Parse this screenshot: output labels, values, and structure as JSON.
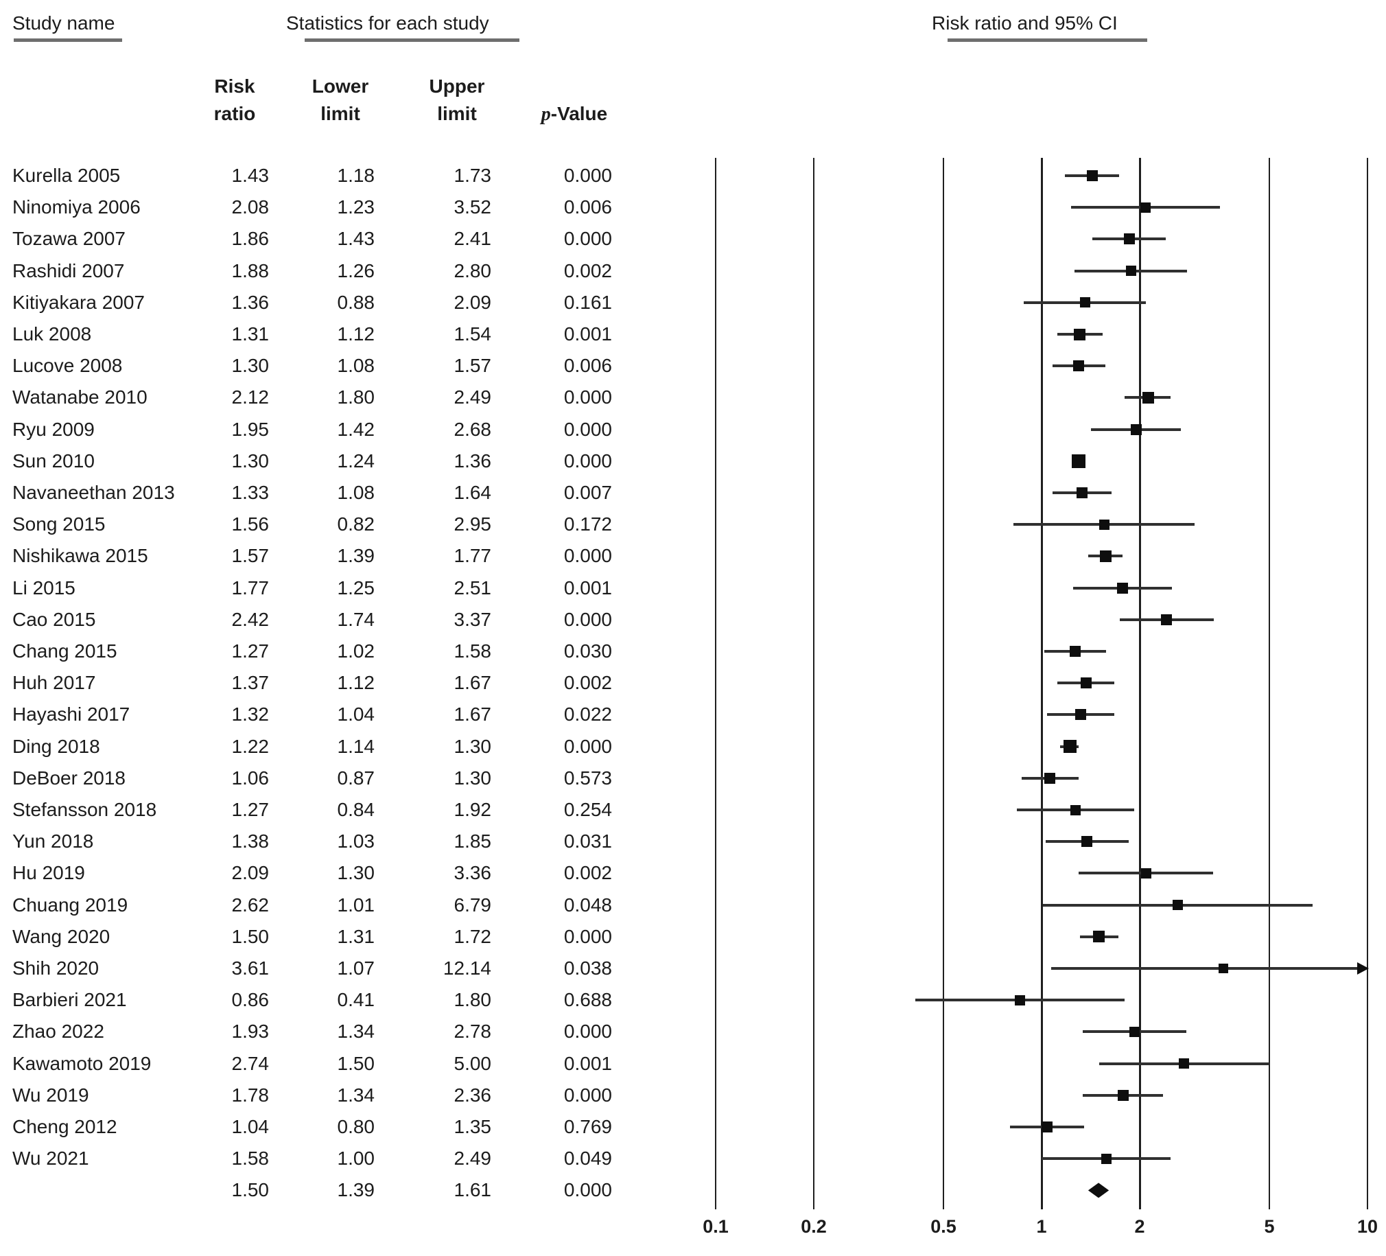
{
  "header": {
    "study_name": "Study name",
    "statistics": "Statistics for each study",
    "plot_title": "Risk ratio and 95% CI"
  },
  "columns": {
    "risk": [
      "Risk",
      "ratio"
    ],
    "lower": [
      "Lower",
      "limit"
    ],
    "upper": [
      "Upper",
      "limit"
    ],
    "p_italic": "p",
    "p_rest": "-Value"
  },
  "colors": {
    "text": "#1c1c1c",
    "underline": "#6e6e6e",
    "gridline": "#1f1f1f",
    "ci_line": "#303030",
    "marker": "#0e0e0e"
  },
  "chart_data": {
    "type": "forest",
    "x_scale": "log10",
    "xlim": [
      0.1,
      10
    ],
    "axis_ticks": [
      "0.1",
      "0.2",
      "0.5",
      "1",
      "2",
      "5",
      "10"
    ],
    "grid": "vertical-lines-at-ticks",
    "plot_title": "Risk ratio and 95% CI",
    "studies": [
      {
        "name": "Kurella 2005",
        "rr": "1.43",
        "lower": "1.18",
        "upper": "1.73",
        "p": "0.000"
      },
      {
        "name": "Ninomiya 2006",
        "rr": "2.08",
        "lower": "1.23",
        "upper": "3.52",
        "p": "0.006"
      },
      {
        "name": "Tozawa 2007",
        "rr": "1.86",
        "lower": "1.43",
        "upper": "2.41",
        "p": "0.000"
      },
      {
        "name": "Rashidi 2007",
        "rr": "1.88",
        "lower": "1.26",
        "upper": "2.80",
        "p": "0.002"
      },
      {
        "name": "Kitiyakara 2007",
        "rr": "1.36",
        "lower": "0.88",
        "upper": "2.09",
        "p": "0.161"
      },
      {
        "name": "Luk 2008",
        "rr": "1.31",
        "lower": "1.12",
        "upper": "1.54",
        "p": "0.001"
      },
      {
        "name": "Lucove 2008",
        "rr": "1.30",
        "lower": "1.08",
        "upper": "1.57",
        "p": "0.006"
      },
      {
        "name": "Watanabe 2010",
        "rr": "2.12",
        "lower": "1.80",
        "upper": "2.49",
        "p": "0.000"
      },
      {
        "name": "Ryu 2009",
        "rr": "1.95",
        "lower": "1.42",
        "upper": "2.68",
        "p": "0.000"
      },
      {
        "name": "Sun 2010",
        "rr": "1.30",
        "lower": "1.24",
        "upper": "1.36",
        "p": "0.000"
      },
      {
        "name": "Navaneethan 2013",
        "rr": "1.33",
        "lower": "1.08",
        "upper": "1.64",
        "p": "0.007"
      },
      {
        "name": "Song 2015",
        "rr": "1.56",
        "lower": "0.82",
        "upper": "2.95",
        "p": "0.172"
      },
      {
        "name": "Nishikawa 2015",
        "rr": "1.57",
        "lower": "1.39",
        "upper": "1.77",
        "p": "0.000"
      },
      {
        "name": "Li 2015",
        "rr": "1.77",
        "lower": "1.25",
        "upper": "2.51",
        "p": "0.001"
      },
      {
        "name": "Cao 2015",
        "rr": "2.42",
        "lower": "1.74",
        "upper": "3.37",
        "p": "0.000"
      },
      {
        "name": "Chang 2015",
        "rr": "1.27",
        "lower": "1.02",
        "upper": "1.58",
        "p": "0.030"
      },
      {
        "name": "Huh 2017",
        "rr": "1.37",
        "lower": "1.12",
        "upper": "1.67",
        "p": "0.002"
      },
      {
        "name": "Hayashi 2017",
        "rr": "1.32",
        "lower": "1.04",
        "upper": "1.67",
        "p": "0.022"
      },
      {
        "name": "Ding 2018",
        "rr": "1.22",
        "lower": "1.14",
        "upper": "1.30",
        "p": "0.000"
      },
      {
        "name": "DeBoer 2018",
        "rr": "1.06",
        "lower": "0.87",
        "upper": "1.30",
        "p": "0.573"
      },
      {
        "name": "Stefansson 2018",
        "rr": "1.27",
        "lower": "0.84",
        "upper": "1.92",
        "p": "0.254"
      },
      {
        "name": "Yun 2018",
        "rr": "1.38",
        "lower": "1.03",
        "upper": "1.85",
        "p": "0.031"
      },
      {
        "name": "Hu 2019",
        "rr": "2.09",
        "lower": "1.30",
        "upper": "3.36",
        "p": "0.002"
      },
      {
        "name": "Chuang 2019",
        "rr": "2.62",
        "lower": "1.01",
        "upper": "6.79",
        "p": "0.048"
      },
      {
        "name": "Wang 2020",
        "rr": "1.50",
        "lower": "1.31",
        "upper": "1.72",
        "p": "0.000"
      },
      {
        "name": "Shih 2020",
        "rr": "3.61",
        "lower": "1.07",
        "upper": "12.14",
        "p": "0.038"
      },
      {
        "name": "Barbieri 2021",
        "rr": "0.86",
        "lower": "0.41",
        "upper": "1.80",
        "p": "0.688"
      },
      {
        "name": "Zhao 2022",
        "rr": "1.93",
        "lower": "1.34",
        "upper": "2.78",
        "p": "0.000"
      },
      {
        "name": "Kawamoto 2019",
        "rr": "2.74",
        "lower": "1.50",
        "upper": "5.00",
        "p": "0.001"
      },
      {
        "name": "Wu 2019",
        "rr": "1.78",
        "lower": "1.34",
        "upper": "2.36",
        "p": "0.000"
      },
      {
        "name": "Cheng 2012",
        "rr": "1.04",
        "lower": "0.80",
        "upper": "1.35",
        "p": "0.769"
      },
      {
        "name": "Wu 2021",
        "rr": "1.58",
        "lower": "1.00",
        "upper": "2.49",
        "p": "0.049"
      }
    ],
    "summary": {
      "name": "",
      "rr": "1.50",
      "lower": "1.39",
      "upper": "1.61",
      "p": "0.000",
      "marker": "diamond"
    }
  }
}
